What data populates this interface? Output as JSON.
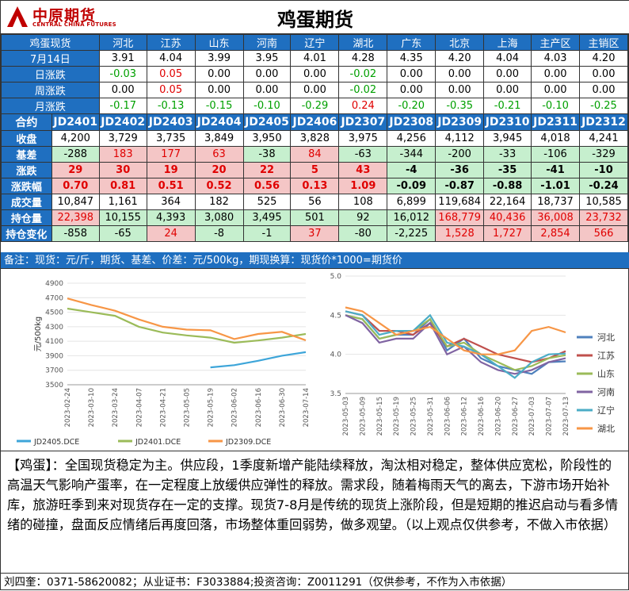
{
  "header": {
    "title": "鸡蛋期货",
    "logo_cn": "中原期货",
    "logo_en": "CENTRAL CHINA FUTURES"
  },
  "spot": {
    "label": "鸡蛋现货",
    "regions": [
      "河北",
      "江苏",
      "山东",
      "河南",
      "辽宁",
      "湖北",
      "广东",
      "北京",
      "上海",
      "主产区",
      "主销区"
    ],
    "rows": [
      {
        "label": "7月14日",
        "values": [
          "3.91",
          "4.04",
          "3.99",
          "3.95",
          "4.01",
          "4.28",
          "4.35",
          "4.20",
          "4.04",
          "4.03",
          "4.20"
        ]
      },
      {
        "label": "日涨跌",
        "values": [
          "-0.03",
          "0.05",
          "0.00",
          "0.00",
          "0.00",
          "-0.02",
          "0.00",
          "0.00",
          "0.00",
          "0.00",
          "0.00"
        ]
      },
      {
        "label": "周涨跌",
        "values": [
          "0.00",
          "0.05",
          "0.00",
          "0.00",
          "0.00",
          "-0.02",
          "0.00",
          "0.00",
          "0.00",
          "0.00",
          "0.00"
        ]
      },
      {
        "label": "月涨跌",
        "values": [
          "-0.17",
          "-0.13",
          "-0.15",
          "-0.10",
          "-0.29",
          "0.24",
          "-0.20",
          "-0.35",
          "-0.21",
          "-0.10",
          "-0.25"
        ]
      }
    ]
  },
  "futures": {
    "label": "合约",
    "contracts": [
      "JD2401",
      "JD2402",
      "JD2403",
      "JD2404",
      "JD2405",
      "JD2406",
      "JD2307",
      "JD2308",
      "JD2309",
      "JD2310",
      "JD2311",
      "JD2312"
    ],
    "rows": [
      {
        "label": "收盘",
        "values": [
          "4,200",
          "3,729",
          "3,735",
          "3,849",
          "3,950",
          "3,828",
          "3,975",
          "4,256",
          "4,112",
          "3,945",
          "4,018",
          "4,241"
        ]
      },
      {
        "label": "基差",
        "values": [
          "-288",
          "183",
          "177",
          "63",
          "-38",
          "84",
          "-63",
          "-344",
          "-200",
          "-33",
          "-106",
          "-329"
        ]
      },
      {
        "label": "涨跌",
        "values": [
          "29",
          "30",
          "19",
          "20",
          "22",
          "5",
          "43",
          "-4",
          "-36",
          "-35",
          "-41",
          "-10"
        ]
      },
      {
        "label": "涨跌幅",
        "values": [
          "0.70",
          "0.81",
          "0.51",
          "0.52",
          "0.56",
          "0.13",
          "1.09",
          "-0.09",
          "-0.87",
          "-0.88",
          "-1.01",
          "-0.24"
        ]
      },
      {
        "label": "成交量",
        "values": [
          "10,847",
          "1,161",
          "364",
          "182",
          "525",
          "56",
          "108",
          "6,899",
          "119,684",
          "22,164",
          "18,737",
          "10,585"
        ]
      },
      {
        "label": "持仓量",
        "values": [
          "22,398",
          "10,155",
          "4,393",
          "3,080",
          "3,495",
          "501",
          "92",
          "16,012",
          "168,779",
          "40,436",
          "36,008",
          "23,732"
        ]
      },
      {
        "label": "持仓变化",
        "values": [
          "-858",
          "-65",
          "24",
          "-8",
          "-1",
          "37",
          "-80",
          "-2,225",
          "1,528",
          "1,727",
          "2,854",
          "566"
        ]
      }
    ]
  },
  "note": "备注：现货：元/斤，期货、基差、价差：元/500kg，期现换算：现货价*1000=期货价",
  "commentary": "【鸡蛋】：全国现货稳定为主。供应段，1季度新增产能陆续释放，淘汰相对稳定，整体供应宽松，阶段性的高温天气影响产蛋率，在一定程度上放缓供应弹性的释放。需求段，随着梅雨天气的离去，下游市场开始补库，旅游旺季到来对现货存在一定的支撑。现货7-8月是传统的现货上涨阶段，但是短期的推迟启动与看多情绪的碰撞，盘面反应情绪后再度回落，市场整体重回弱势，做多观望。（以上观点仅供参考，不做入市依据）",
  "footer": "刘四奎：0371-58620082；从业证书：F3033884;投资咨询：Z0011291（仅供参考，不作为入市依据）",
  "chart_data": [
    {
      "type": "line",
      "ylabel": "元/500kg",
      "ylim": [
        3500,
        4900
      ],
      "yticks": [
        3500,
        3700,
        3900,
        4100,
        4300,
        4500,
        4700,
        4900
      ],
      "x": [
        "2023-02-24",
        "2023-03-10",
        "2023-03-24",
        "2023-04-07",
        "2023-04-21",
        "2023-05-05",
        "2023-05-19",
        "2023-06-02",
        "2023-06-16",
        "2023-06-30",
        "2023-07-14"
      ],
      "series": [
        {
          "name": "JD2405.DCE",
          "color": "#3da5d9",
          "values": [
            null,
            null,
            null,
            null,
            null,
            null,
            3740,
            3770,
            3830,
            3900,
            3950
          ]
        },
        {
          "name": "JD2401.DCE",
          "color": "#9bbb59",
          "values": [
            4550,
            4500,
            4450,
            4300,
            4220,
            4180,
            4150,
            4080,
            4110,
            4150,
            4200
          ]
        },
        {
          "name": "JD2309.DCE",
          "color": "#f79646",
          "values": [
            4690,
            4600,
            4520,
            4400,
            4300,
            4260,
            4250,
            4130,
            4200,
            4230,
            4112
          ]
        }
      ]
    },
    {
      "type": "line",
      "ylim": [
        3.5,
        5.0
      ],
      "yticks": [
        3.5,
        4.0,
        4.5,
        5.0
      ],
      "x": [
        "2023-05-03",
        "2023-05-09",
        "2023-05-15",
        "2023-05-19",
        "2023-05-25",
        "2023-05-31",
        "2023-06-06",
        "2023-06-12",
        "2023-06-16",
        "2023-06-20",
        "2023-06-27",
        "2023-07-03",
        "2023-07-07",
        "2023-07-13"
      ],
      "series": [
        {
          "name": "河北",
          "color": "#4f81bd",
          "values": [
            4.5,
            4.45,
            4.2,
            4.25,
            4.25,
            4.45,
            4.05,
            4.2,
            3.95,
            3.85,
            3.8,
            3.75,
            3.9,
            3.91
          ]
        },
        {
          "name": "江苏",
          "color": "#c0504d",
          "values": [
            4.55,
            4.5,
            4.3,
            4.3,
            4.25,
            4.4,
            4.1,
            4.2,
            4.1,
            4.0,
            3.95,
            3.9,
            3.95,
            4.04
          ]
        },
        {
          "name": "山东",
          "color": "#9bbb59",
          "values": [
            4.5,
            4.45,
            4.2,
            4.25,
            4.3,
            4.45,
            4.1,
            4.15,
            4.0,
            3.9,
            3.8,
            3.85,
            3.95,
            3.99
          ]
        },
        {
          "name": "河南",
          "color": "#8064a2",
          "values": [
            4.5,
            4.4,
            4.15,
            4.2,
            4.2,
            4.4,
            4.0,
            4.1,
            3.9,
            3.8,
            3.75,
            3.8,
            3.9,
            3.95
          ]
        },
        {
          "name": "辽宁",
          "color": "#4bacc6",
          "values": [
            4.55,
            4.5,
            4.25,
            4.3,
            4.3,
            4.5,
            4.15,
            4.1,
            4.0,
            3.85,
            3.7,
            3.9,
            4.0,
            4.01
          ]
        },
        {
          "name": "湖北",
          "color": "#f79646",
          "values": [
            4.6,
            4.55,
            4.4,
            4.25,
            4.3,
            4.35,
            4.2,
            4.05,
            4.0,
            4.0,
            4.05,
            4.3,
            4.35,
            4.28
          ]
        }
      ]
    }
  ]
}
